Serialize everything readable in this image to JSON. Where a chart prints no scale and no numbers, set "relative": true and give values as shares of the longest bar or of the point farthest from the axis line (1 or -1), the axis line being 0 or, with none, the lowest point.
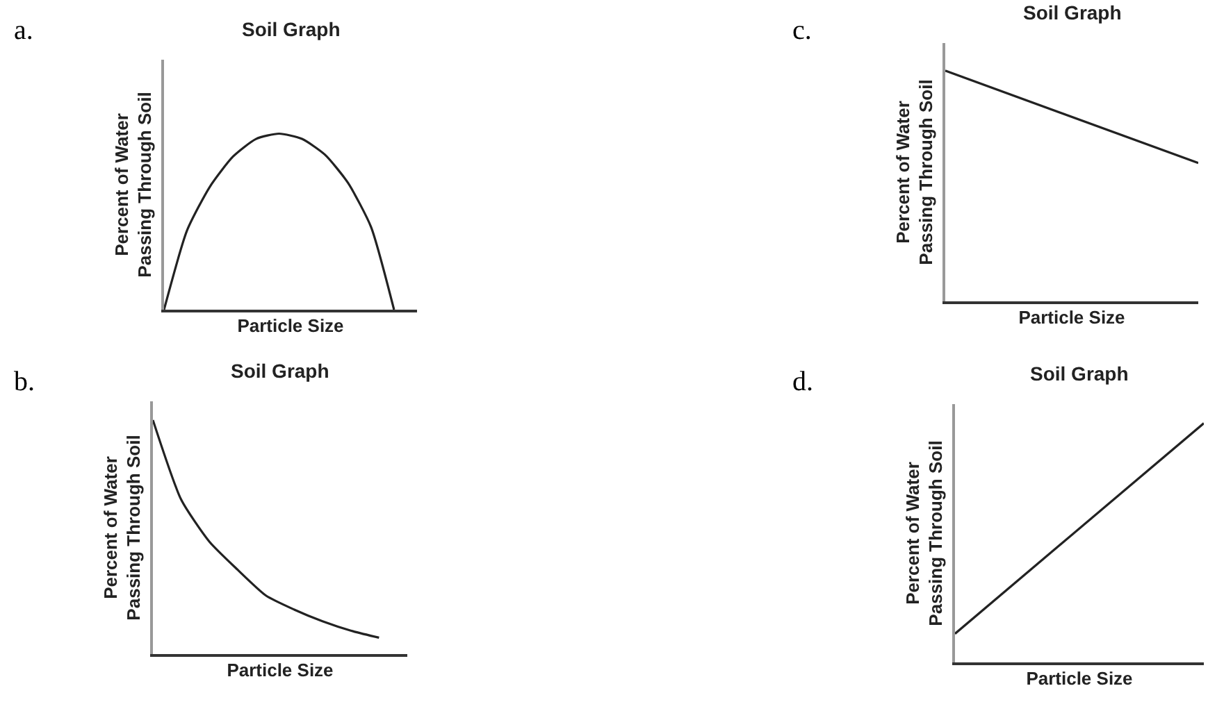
{
  "chart_data": [
    {
      "type": "line",
      "title": "Soil Graph",
      "xlabel": "Particle Size",
      "ylabel": "Percent of Water\nPassing Through Soil",
      "annotations": [
        "a."
      ],
      "relative": true,
      "categories": [
        null,
        null,
        null,
        null,
        null,
        null,
        null,
        null,
        null,
        null,
        null,
        null
      ],
      "series": [
        {
          "color": "#222222",
          "values": [
            0,
            0.45,
            0.7,
            0.87,
            0.97,
            1.0,
            0.97,
            0.88,
            0.72,
            0.47,
            0,
            null
          ]
        }
      ]
    },
    {
      "type": "line",
      "title": "Soil Graph",
      "xlabel": "Particle Size",
      "ylabel": "Percent of Water\nPassing Through Soil",
      "annotations": [
        "c."
      ],
      "relative": true,
      "categories": [
        null,
        null
      ],
      "series": [
        {
          "color": "#222222",
          "values": [
            1,
            0.6
          ]
        }
      ]
    },
    {
      "type": "line",
      "title": "Soil Graph",
      "xlabel": "Particle Size",
      "ylabel": "Percent of Water\nPassing Through Soil",
      "annotations": [
        "b."
      ],
      "relative": true,
      "categories": [
        null,
        null,
        null,
        null,
        null,
        null,
        null,
        null,
        null,
        null
      ],
      "series": [
        {
          "color": "#222222",
          "values": [
            1,
            0.66,
            0.48,
            0.36,
            0.25,
            0.19,
            0.14,
            0.1,
            0.07,
            null
          ]
        }
      ]
    },
    {
      "type": "line",
      "title": "Soil Graph",
      "xlabel": "Particle Size",
      "ylabel": "Percent of Water\nPassing Through Soil",
      "annotations": [
        "d."
      ],
      "relative": true,
      "categories": [
        null,
        null
      ],
      "series": [
        {
          "color": "#222222",
          "values": [
            0.12,
            1
          ]
        }
      ]
    }
  ]
}
